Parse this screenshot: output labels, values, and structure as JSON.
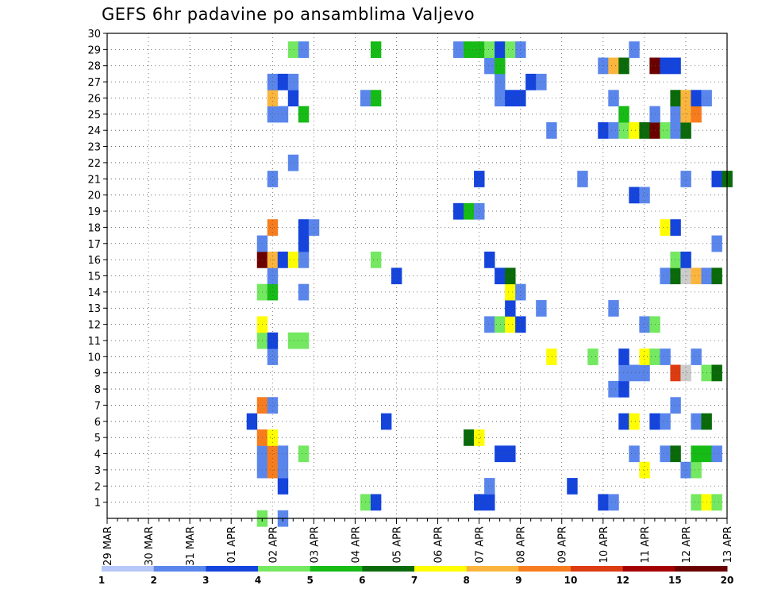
{
  "chart_data": {
    "type": "heatmap",
    "title": "GEFS 6hr padavine po ansamblima Valjevo",
    "x_tick_labels": [
      "29 MAR",
      "30 MAR",
      "31 MAR",
      "01 APR",
      "02 APR",
      "03 APR",
      "04 APR",
      "05 APR",
      "06 APR",
      "07 APR",
      "08 APR",
      "09 APR",
      "10 APR",
      "11 APR",
      "12 APR",
      "13 APR"
    ],
    "y_tick_labels": [
      "1",
      "2",
      "3",
      "4",
      "5",
      "6",
      "7",
      "8",
      "9",
      "10",
      "11",
      "12",
      "13",
      "14",
      "15",
      "16",
      "17",
      "18",
      "19",
      "20",
      "21",
      "22",
      "23",
      "24",
      "25",
      "26",
      "27",
      "28",
      "29",
      "30"
    ],
    "x_unit": "6-hour steps from 29 MAR 00Z",
    "xlim": [
      0,
      60
    ],
    "ylim": [
      0,
      30
    ],
    "grid": "dotted",
    "legend_position": "bottom",
    "colorbar": {
      "labels": [
        "1",
        "2",
        "3",
        "4",
        "5",
        "6",
        "7",
        "8",
        "9",
        "10",
        "12",
        "15",
        "20"
      ],
      "colors": [
        "#b7c7f7",
        "#5a86ec",
        "#1444dc",
        "#73e860",
        "#16bb16",
        "#0a6a0a",
        "#fffe00",
        "#fbb53c",
        "#f77c1e",
        "#dd3b12",
        "#a30000",
        "#6b0000"
      ]
    },
    "cells": [
      [
        15,
        0,
        3
      ],
      [
        17,
        0,
        1
      ],
      [
        25,
        1,
        3
      ],
      [
        26,
        1,
        2
      ],
      [
        36,
        1,
        2
      ],
      [
        37,
        1,
        2
      ],
      [
        48,
        1,
        2
      ],
      [
        49,
        1,
        1
      ],
      [
        57,
        1,
        3
      ],
      [
        58,
        1,
        6
      ],
      [
        59,
        1,
        3
      ],
      [
        17,
        2,
        2
      ],
      [
        37,
        2,
        1
      ],
      [
        45,
        2,
        2
      ],
      [
        15,
        3,
        1
      ],
      [
        16,
        3,
        8
      ],
      [
        17,
        3,
        1
      ],
      [
        52,
        3,
        6
      ],
      [
        56,
        3,
        1
      ],
      [
        57,
        3,
        3
      ],
      [
        15,
        4,
        1
      ],
      [
        16,
        4,
        8
      ],
      [
        17,
        4,
        1
      ],
      [
        19,
        4,
        3
      ],
      [
        38,
        4,
        2
      ],
      [
        39,
        4,
        2
      ],
      [
        51,
        4,
        1
      ],
      [
        54,
        4,
        1
      ],
      [
        55,
        4,
        5
      ],
      [
        57,
        4,
        4
      ],
      [
        58,
        4,
        4
      ],
      [
        59,
        4,
        1
      ],
      [
        15,
        5,
        8
      ],
      [
        16,
        5,
        6
      ],
      [
        35,
        5,
        5
      ],
      [
        36,
        5,
        6
      ],
      [
        14,
        6,
        2
      ],
      [
        27,
        6,
        2
      ],
      [
        50,
        6,
        2
      ],
      [
        51,
        6,
        6
      ],
      [
        53,
        6,
        2
      ],
      [
        54,
        6,
        1
      ],
      [
        57,
        6,
        1
      ],
      [
        58,
        6,
        5
      ],
      [
        15,
        7,
        8
      ],
      [
        16,
        7,
        1
      ],
      [
        55,
        7,
        1
      ],
      [
        49,
        8,
        1
      ],
      [
        50,
        8,
        2
      ],
      [
        50,
        9,
        1
      ],
      [
        51,
        9,
        1
      ],
      [
        52,
        9,
        1
      ],
      [
        55,
        9,
        9
      ],
      [
        56,
        9,
        12
      ],
      [
        58,
        9,
        3
      ],
      [
        59,
        9,
        5
      ],
      [
        16,
        10,
        1
      ],
      [
        43,
        10,
        6
      ],
      [
        47,
        10,
        3
      ],
      [
        50,
        10,
        2
      ],
      [
        52,
        10,
        6
      ],
      [
        53,
        10,
        3
      ],
      [
        54,
        10,
        1
      ],
      [
        57,
        10,
        1
      ],
      [
        15,
        11,
        3
      ],
      [
        16,
        11,
        2
      ],
      [
        18,
        11,
        3
      ],
      [
        19,
        11,
        3
      ],
      [
        15,
        12,
        6
      ],
      [
        37,
        12,
        1
      ],
      [
        38,
        12,
        3
      ],
      [
        39,
        12,
        6
      ],
      [
        40,
        12,
        2
      ],
      [
        52,
        12,
        1
      ],
      [
        53,
        12,
        3
      ],
      [
        39,
        13,
        2
      ],
      [
        42,
        13,
        1
      ],
      [
        49,
        13,
        1
      ],
      [
        15,
        14,
        3
      ],
      [
        16,
        14,
        4
      ],
      [
        19,
        14,
        1
      ],
      [
        39,
        14,
        6
      ],
      [
        40,
        14,
        1
      ],
      [
        16,
        15,
        1
      ],
      [
        28,
        15,
        2
      ],
      [
        38,
        15,
        2
      ],
      [
        39,
        15,
        5
      ],
      [
        54,
        15,
        1
      ],
      [
        55,
        15,
        5
      ],
      [
        56,
        15,
        12
      ],
      [
        57,
        15,
        7
      ],
      [
        58,
        15,
        1
      ],
      [
        59,
        15,
        5
      ],
      [
        15,
        16,
        11
      ],
      [
        16,
        16,
        7
      ],
      [
        17,
        16,
        2
      ],
      [
        18,
        16,
        6
      ],
      [
        19,
        16,
        1
      ],
      [
        26,
        16,
        3
      ],
      [
        37,
        16,
        2
      ],
      [
        55,
        16,
        3
      ],
      [
        56,
        16,
        2
      ],
      [
        15,
        17,
        1
      ],
      [
        19,
        17,
        2
      ],
      [
        59,
        17,
        1
      ],
      [
        16,
        18,
        8
      ],
      [
        19,
        18,
        2
      ],
      [
        20,
        18,
        1
      ],
      [
        54,
        18,
        6
      ],
      [
        55,
        18,
        2
      ],
      [
        34,
        19,
        2
      ],
      [
        35,
        19,
        4
      ],
      [
        36,
        19,
        1
      ],
      [
        51,
        20,
        2
      ],
      [
        52,
        20,
        1
      ],
      [
        16,
        21,
        1
      ],
      [
        36,
        21,
        2
      ],
      [
        46,
        21,
        1
      ],
      [
        56,
        21,
        1
      ],
      [
        59,
        21,
        2
      ],
      [
        60,
        21,
        5
      ],
      [
        18,
        22,
        1
      ],
      [
        43,
        24,
        1
      ],
      [
        48,
        24,
        2
      ],
      [
        49,
        24,
        1
      ],
      [
        50,
        24,
        3
      ],
      [
        51,
        24,
        6
      ],
      [
        52,
        24,
        5
      ],
      [
        53,
        24,
        11
      ],
      [
        54,
        24,
        3
      ],
      [
        55,
        24,
        1
      ],
      [
        56,
        24,
        5
      ],
      [
        16,
        25,
        1
      ],
      [
        17,
        25,
        1
      ],
      [
        19,
        25,
        4
      ],
      [
        50,
        25,
        4
      ],
      [
        53,
        25,
        1
      ],
      [
        55,
        25,
        1
      ],
      [
        56,
        25,
        7
      ],
      [
        57,
        25,
        8
      ],
      [
        16,
        26,
        7
      ],
      [
        18,
        26,
        2
      ],
      [
        25,
        26,
        1
      ],
      [
        26,
        26,
        4
      ],
      [
        38,
        26,
        1
      ],
      [
        39,
        26,
        2
      ],
      [
        40,
        26,
        2
      ],
      [
        49,
        26,
        1
      ],
      [
        55,
        26,
        5
      ],
      [
        56,
        26,
        7
      ],
      [
        57,
        26,
        2
      ],
      [
        58,
        26,
        1
      ],
      [
        16,
        27,
        1
      ],
      [
        17,
        27,
        2
      ],
      [
        18,
        27,
        1
      ],
      [
        38,
        27,
        1
      ],
      [
        41,
        27,
        2
      ],
      [
        42,
        27,
        1
      ],
      [
        48,
        28,
        1
      ],
      [
        49,
        28,
        7
      ],
      [
        50,
        28,
        5
      ],
      [
        53,
        28,
        11
      ],
      [
        54,
        28,
        2
      ],
      [
        55,
        28,
        2
      ],
      [
        37,
        28,
        1
      ],
      [
        38,
        28,
        4
      ],
      [
        18,
        29,
        3
      ],
      [
        19,
        29,
        1
      ],
      [
        26,
        29,
        4
      ],
      [
        34,
        29,
        1
      ],
      [
        35,
        29,
        4
      ],
      [
        36,
        29,
        4
      ],
      [
        37,
        29,
        3
      ],
      [
        38,
        29,
        2
      ],
      [
        39,
        29,
        3
      ],
      [
        40,
        29,
        1
      ],
      [
        51,
        29,
        1
      ]
    ]
  }
}
